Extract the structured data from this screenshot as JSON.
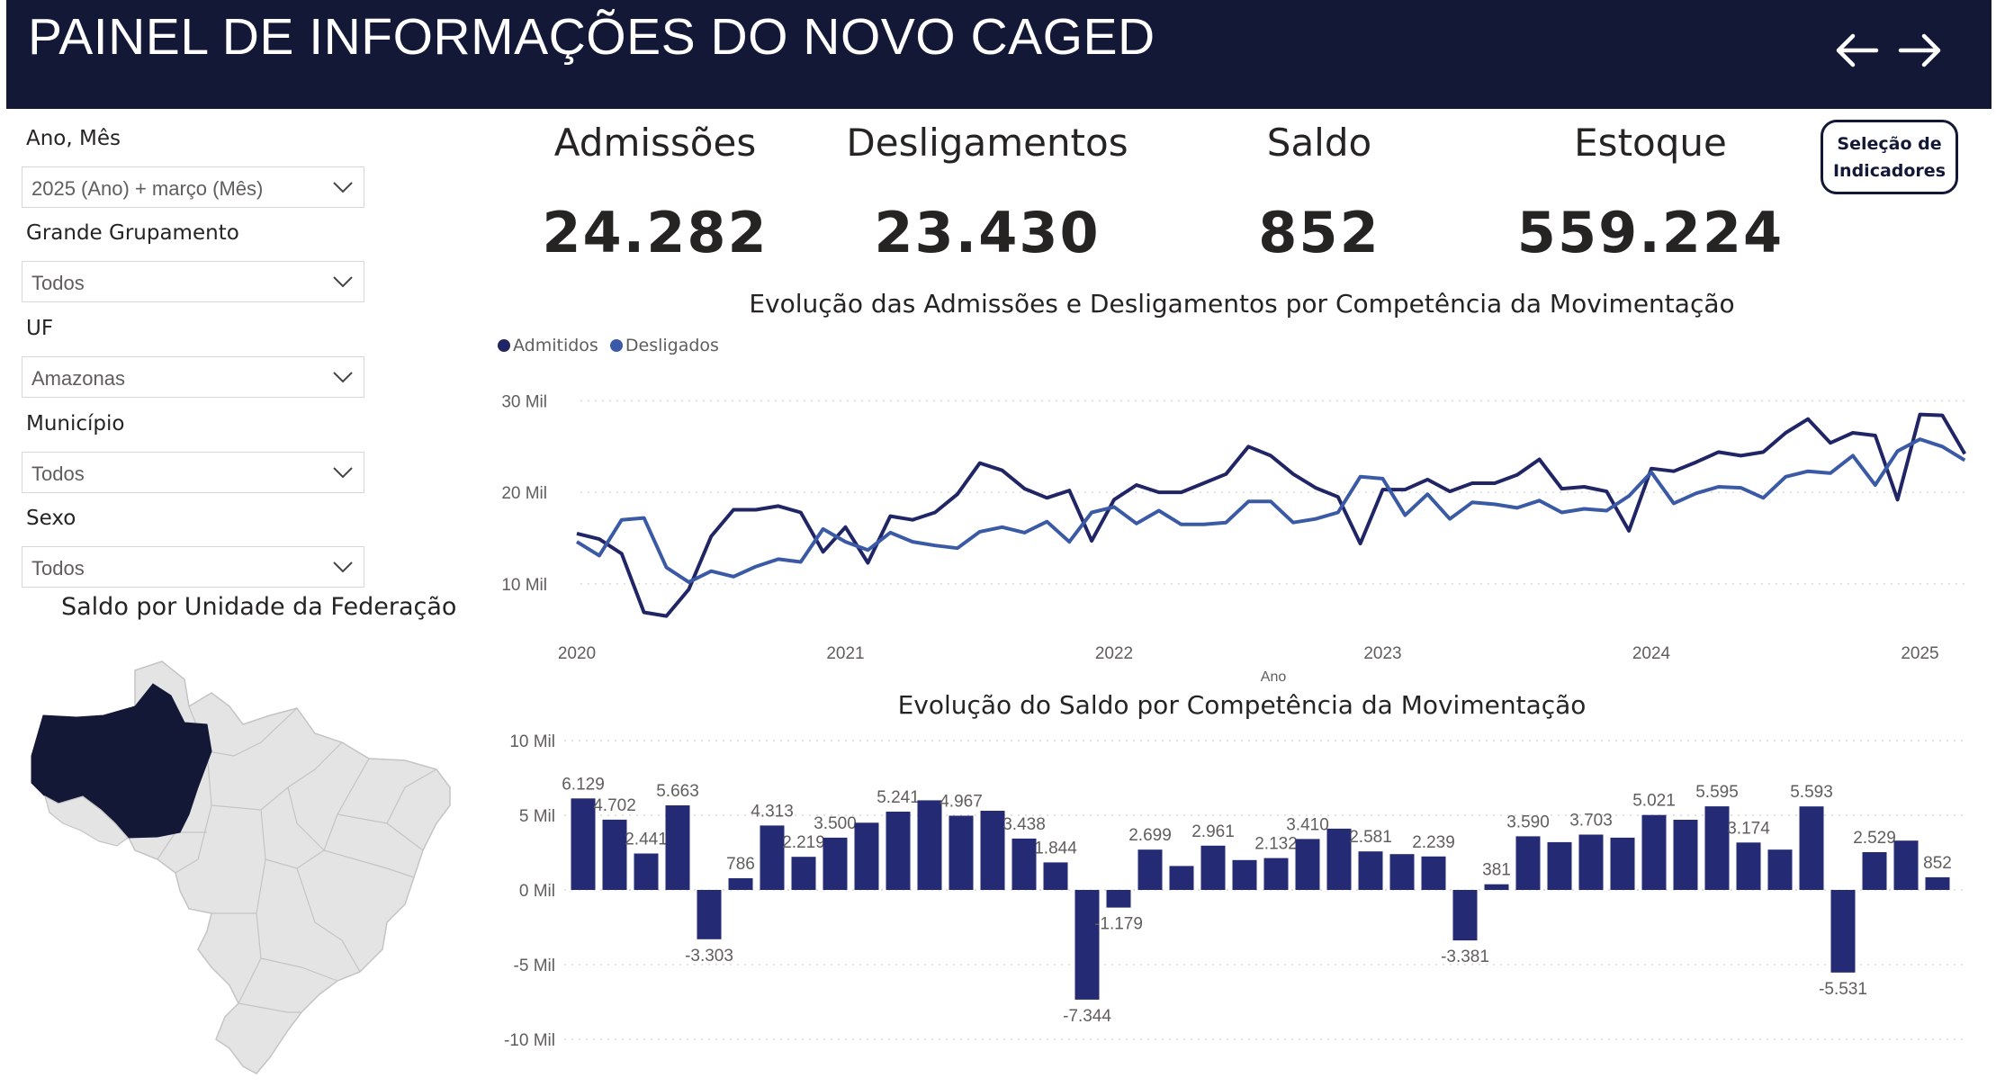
{
  "header": {
    "title": "PAINEL DE INFORMAÇÕES DO NOVO CAGED",
    "back_icon": "arrow-left-icon",
    "forward_icon": "arrow-right-icon",
    "background": "#141837"
  },
  "filters": {
    "ano_mes": {
      "label": "Ano, Mês",
      "value": "2025 (Ano) + março (Mês)"
    },
    "grande_grupamento": {
      "label": "Grande Grupamento",
      "value": "Todos"
    },
    "uf": {
      "label": "UF",
      "value": "Amazonas"
    },
    "municipio": {
      "label": "Município",
      "value": "Todos"
    },
    "sexo": {
      "label": "Sexo",
      "value": "Todos"
    }
  },
  "map": {
    "title": "Saldo por Unidade da Federação",
    "highlighted": "Amazonas",
    "highlight_color": "#141837"
  },
  "kpis": [
    {
      "label": "Admissões",
      "value": "24.282"
    },
    {
      "label": "Desligamentos",
      "value": "23.430"
    },
    {
      "label": "Saldo",
      "value": "852"
    },
    {
      "label": "Estoque",
      "value": "559.224"
    }
  ],
  "selection_button": {
    "line1": "Seleção de",
    "line2": "Indicadores"
  },
  "chart_data": [
    {
      "type": "line",
      "title": "Evolução das Admissões e Desligamentos por Competência da Movimentação",
      "xlabel": "Ano",
      "ylabel": "",
      "x_ticks": [
        "2020",
        "2021",
        "2022",
        "2023",
        "2024",
        "2025"
      ],
      "y_ticks": [
        "10 Mil",
        "20 Mil",
        "30 Mil"
      ],
      "ylim": [
        4000,
        32000
      ],
      "legend": [
        "Admitidos",
        "Desligados"
      ],
      "series": [
        {
          "name": "Admitidos",
          "color": "#202566",
          "values": [
            15500,
            14900,
            13300,
            6900,
            6500,
            9400,
            15200,
            18100,
            18100,
            18500,
            17800,
            13500,
            16200,
            12300,
            17400,
            17000,
            17800,
            19800,
            23200,
            22400,
            20400,
            19400,
            20200,
            14700,
            19200,
            20800,
            20000,
            20000,
            21000,
            22000,
            25000,
            24000,
            22000,
            20500,
            19500,
            14400,
            20300,
            20300,
            21400,
            20100,
            21000,
            21000,
            21900,
            23600,
            20400,
            20600,
            20100,
            15800,
            22600,
            22300,
            23300,
            24400,
            24000,
            24400,
            26500,
            28000,
            25400,
            26500,
            26200,
            19200,
            28500,
            28400,
            24200
          ]
        },
        {
          "name": "Desligados",
          "color": "#3b5aa6",
          "values": [
            14600,
            13100,
            17000,
            17200,
            11800,
            10200,
            11400,
            10800,
            11900,
            12700,
            12400,
            16000,
            14600,
            13700,
            15600,
            14600,
            14200,
            13900,
            15700,
            16200,
            15600,
            16800,
            14600,
            17800,
            18400,
            16600,
            18000,
            16500,
            16500,
            16700,
            19000,
            19000,
            16700,
            17100,
            17800,
            21700,
            21500,
            17500,
            19800,
            17100,
            18900,
            18700,
            18300,
            19100,
            17800,
            18200,
            18000,
            19600,
            22200,
            18800,
            19900,
            20600,
            20500,
            19400,
            21700,
            22300,
            22100,
            24000,
            20800,
            24500,
            25800,
            25000,
            23500
          ]
        }
      ]
    },
    {
      "type": "bar",
      "title": "Evolução do Saldo por Competência da Movimentação",
      "y_ticks": [
        "10 Mil",
        "5 Mil",
        "0 Mil",
        "-5 Mil",
        "-10 Mil"
      ],
      "ylim": [
        -10000,
        10000
      ],
      "color": "#242a73",
      "values": [
        6129,
        4702,
        2441,
        5663,
        -3303,
        786,
        4313,
        2219,
        3500,
        4500,
        5241,
        6000,
        4967,
        5300,
        3438,
        1844,
        -7344,
        -1179,
        2699,
        1600,
        2961,
        2000,
        2132,
        3410,
        4100,
        2581,
        2400,
        2239,
        -3381,
        381,
        3590,
        3200,
        3703,
        3500,
        5021,
        4700,
        5595,
        3174,
        2700,
        5593,
        -5531,
        2529,
        3300,
        852
      ],
      "data_labels": [
        "6.129",
        "4.702",
        "2.441",
        "5.663",
        "-3.303",
        "786",
        "4.313",
        "2.219",
        "3.500",
        "",
        "5.241",
        "",
        "4.967",
        "",
        "3.438",
        "1.844",
        "-7.344",
        "-1.179",
        "2.699",
        "",
        "2.961",
        "",
        "2.132",
        "3.410",
        "",
        "2.581",
        "",
        "2.239",
        "-3.381",
        "381",
        "3.590",
        "",
        "3.703",
        "",
        "5.021",
        "",
        "5.595",
        "3.174",
        "",
        "5.593",
        "-5.531",
        "2.529",
        "",
        "852"
      ]
    }
  ]
}
